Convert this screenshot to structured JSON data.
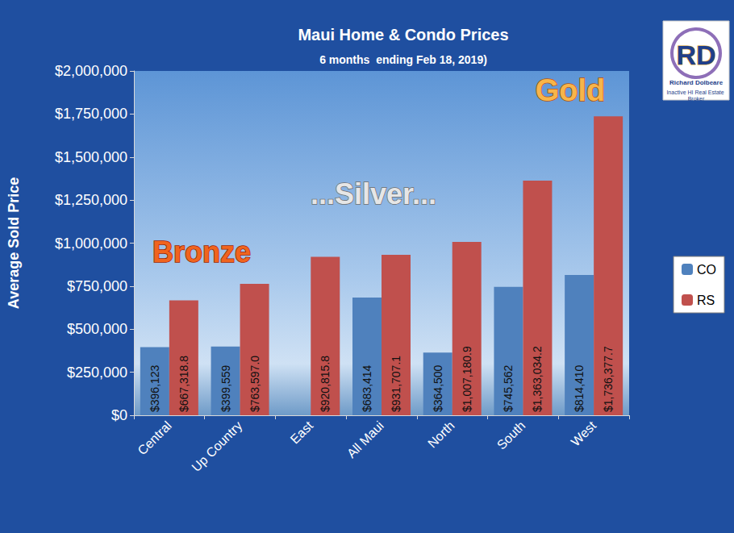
{
  "chart_data": {
    "type": "bar",
    "title": "Maui Home & Condo Prices",
    "subtitle": "6 months  ending Feb 18, 2019)",
    "y_label": "Average Sold Price",
    "categories": [
      "Central",
      "Up Country",
      "East",
      "All Maui",
      "North",
      "South",
      "West"
    ],
    "series": [
      {
        "name": "CO",
        "color": "#4f81bd",
        "values": [
          396123,
          399559,
          null,
          683414,
          364500,
          745562,
          814410
        ],
        "value_labels": [
          "$396,123",
          "$399,559",
          null,
          "$683,414",
          "$364,500",
          "$745,562",
          "$814,410"
        ]
      },
      {
        "name": "RS",
        "color": "#c0504d",
        "values": [
          667318.8,
          763597.0,
          920815.8,
          931707.1,
          1007180.9,
          1363034.2,
          1736377.7
        ],
        "value_labels": [
          "$667,318.8",
          "$763,597.0",
          "$920,815.8",
          "$931,707.1",
          "$1,007,180.9",
          "$1,363,034.2",
          "$1,736,377.7"
        ]
      }
    ],
    "ylim": [
      0,
      2000000
    ],
    "yticks": [
      {
        "value": 0,
        "label": "$0"
      },
      {
        "value": 250000,
        "label": "$250,000"
      },
      {
        "value": 500000,
        "label": "$500,000"
      },
      {
        "value": 750000,
        "label": "$750,000"
      },
      {
        "value": 1000000,
        "label": "$1,000,000"
      },
      {
        "value": 1250000,
        "label": "$1,250,000"
      },
      {
        "value": 1500000,
        "label": "$1,500,000"
      },
      {
        "value": 1750000,
        "label": "$1,750,000"
      },
      {
        "value": 2000000,
        "label": "$2,000,000"
      }
    ],
    "grid": false,
    "legend": "right",
    "data_labels": true,
    "annotations": [
      "Bronze",
      "...Silver...",
      "Gold"
    ],
    "logo": {
      "initials": "RD",
      "name": "Richard Dolbeare",
      "caption": "Inactive HI Real Estate Broker"
    }
  }
}
